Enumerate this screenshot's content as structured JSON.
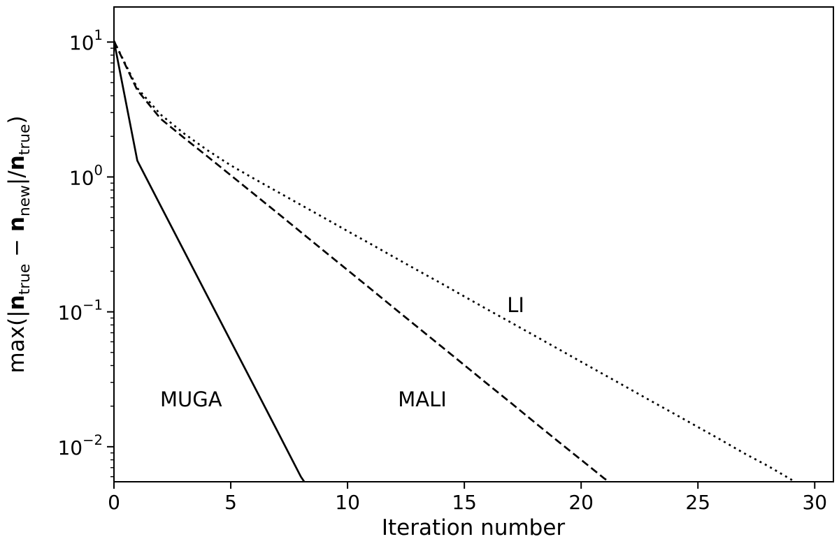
{
  "figure": {
    "background": "#ffffff"
  },
  "chart_data": {
    "type": "line",
    "title": "",
    "xlabel": "Iteration number",
    "ylabel_plain": "max(|n_true − n_new|/n_true)",
    "ylabel_rich": [
      {
        "t": "max(|"
      },
      {
        "t": "n",
        "bold": true
      },
      {
        "t": "true",
        "sub": true
      },
      {
        "t": " − ",
        "bold": false
      },
      {
        "t": "n",
        "bold": true
      },
      {
        "t": "new",
        "sub": true
      },
      {
        "t": "|/"
      },
      {
        "t": "n",
        "bold": true
      },
      {
        "t": "true",
        "sub": true
      },
      {
        "t": ")"
      }
    ],
    "xlim": [
      0,
      30.8
    ],
    "ylim": [
      0.0055,
      18.2
    ],
    "yscale": "log",
    "grid": false,
    "legend": "inline-annotations",
    "line_color": "#000000",
    "background": "#ffffff",
    "x_ticks": [
      0,
      5,
      10,
      15,
      20,
      25,
      30
    ],
    "y_ticks": [
      {
        "base": "10",
        "exp": "1",
        "value": 10
      },
      {
        "base": "10",
        "exp": "0",
        "value": 1
      },
      {
        "base": "10",
        "exp": "−1",
        "value": 0.1
      },
      {
        "base": "10",
        "exp": "−2",
        "value": 0.01
      }
    ],
    "series": [
      {
        "name": "MUGA",
        "style": "solid",
        "x": [
          0,
          1,
          2,
          3,
          4,
          5,
          6,
          7,
          8,
          8.6
        ],
        "y": [
          10.2,
          1.32,
          0.61,
          0.283,
          0.131,
          0.0607,
          0.0281,
          0.013,
          0.006,
          0.0042
        ]
      },
      {
        "name": "MALI",
        "style": "dashed",
        "x": [
          0,
          1,
          2,
          3,
          4,
          5,
          6,
          7,
          8,
          9,
          10,
          11,
          12,
          13,
          14,
          15,
          16,
          17,
          18,
          19,
          20,
          21,
          21.5
        ],
        "y": [
          10.2,
          4.4,
          2.7,
          1.95,
          1.42,
          1.03,
          0.745,
          0.54,
          0.39,
          0.282,
          0.204,
          0.1475,
          0.1065,
          0.077,
          0.0557,
          0.0403,
          0.0291,
          0.0211,
          0.0152,
          0.011,
          0.008,
          0.0058,
          0.0051
        ]
      },
      {
        "name": "LI",
        "style": "dotted",
        "x": [
          0,
          1,
          2,
          3,
          4,
          5,
          6,
          7,
          8,
          9,
          10,
          11,
          12,
          13,
          14,
          15,
          16,
          17,
          18,
          19,
          20,
          21,
          22,
          23,
          24,
          25,
          26,
          27,
          28,
          29,
          29.6
        ],
        "y": [
          10.2,
          4.55,
          2.9,
          2.1,
          1.58,
          1.22,
          0.97,
          0.776,
          0.621,
          0.497,
          0.397,
          0.318,
          0.254,
          0.203,
          0.163,
          0.13,
          0.104,
          0.0833,
          0.0666,
          0.0533,
          0.0426,
          0.0341,
          0.0273,
          0.0218,
          0.0175,
          0.014,
          0.0112,
          0.0089,
          0.0072,
          0.0057,
          0.0049
        ]
      }
    ],
    "annotations": [
      {
        "text": "MUGA",
        "x": 3.3,
        "y": 0.0224
      },
      {
        "text": "MALI",
        "x": 13.2,
        "y": 0.0224
      },
      {
        "text": "LI",
        "x": 17.2,
        "y": 0.112
      }
    ]
  }
}
